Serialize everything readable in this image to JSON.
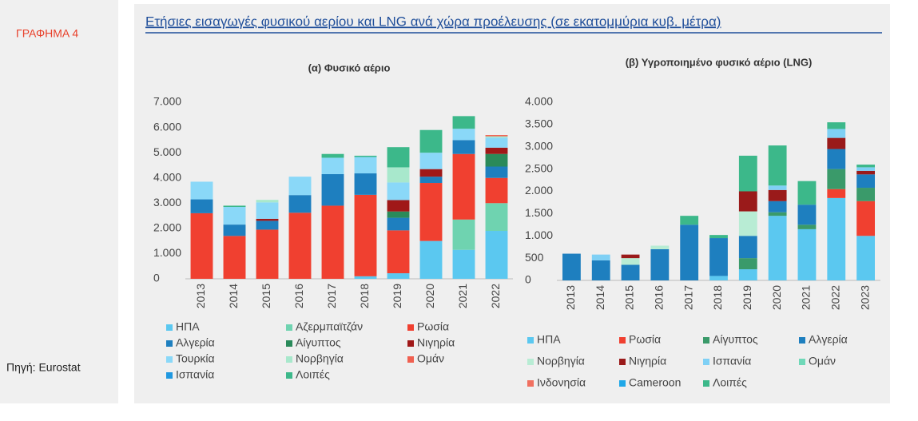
{
  "sidebar": {
    "label": "ΓΡΑΦΗΜΑ 4",
    "source": "Πηγή: Eurostat"
  },
  "title": "Ετήσιες εισαγωγές φυσικού αερίου και LNG ανά χώρα προέλευσης (σε εκατομμύρια κυβ. μέτρα)",
  "chart_data": [
    {
      "type": "stacked_bar",
      "title": "(α) Φυσικό αέριο",
      "categories": [
        "2013",
        "2014",
        "2015",
        "2016",
        "2017",
        "2018",
        "2019",
        "2020",
        "2021",
        "2022"
      ],
      "ylim": [
        0,
        7000
      ],
      "yticks": [
        0,
        {
          "value": 1000,
          "label": "1.000"
        },
        {
          "value": 2000,
          "label": "2.000"
        },
        {
          "value": 3000,
          "label": "3.000"
        },
        {
          "value": 4000,
          "label": "4.000"
        },
        {
          "value": 5000,
          "label": "5.000"
        },
        {
          "value": 6000,
          "label": "6.000"
        },
        {
          "value": 7000,
          "label": "7.000"
        }
      ],
      "grid": false,
      "series": [
        {
          "name": "ΗΠΑ",
          "color": "#5bc8f0",
          "values": [
            0,
            0,
            0,
            0,
            0,
            100,
            220,
            1500,
            1150,
            1900
          ]
        },
        {
          "name": "Αζερμπαϊτζάν",
          "color": "#6fd3b0",
          "values": [
            0,
            0,
            0,
            0,
            0,
            0,
            0,
            0,
            1200,
            1100
          ]
        },
        {
          "name": "Ρωσία",
          "color": "#f04030",
          "values": [
            2600,
            1700,
            1950,
            2620,
            2900,
            3230,
            1700,
            2300,
            2600,
            1000
          ]
        },
        {
          "name": "Αλγερία",
          "color": "#1e7fbf",
          "values": [
            550,
            450,
            350,
            700,
            1250,
            850,
            500,
            250,
            550,
            450
          ]
        },
        {
          "name": "Αίγυπτος",
          "color": "#2a8a5a",
          "values": [
            0,
            0,
            0,
            0,
            0,
            0,
            250,
            0,
            0,
            500
          ]
        },
        {
          "name": "Νιγηρία",
          "color": "#a01818",
          "values": [
            0,
            0,
            80,
            0,
            0,
            0,
            450,
            300,
            0,
            250
          ]
        },
        {
          "name": "Τουρκία",
          "color": "#8ad8f8",
          "values": [
            700,
            700,
            650,
            730,
            650,
            650,
            700,
            650,
            450,
            400
          ]
        },
        {
          "name": "Νορβηγία",
          "color": "#a8e8cc",
          "values": [
            0,
            0,
            100,
            0,
            0,
            0,
            600,
            0,
            0,
            50
          ]
        },
        {
          "name": "Ομάν",
          "color": "#f06050",
          "values": [
            0,
            0,
            0,
            0,
            0,
            0,
            0,
            0,
            0,
            50
          ]
        },
        {
          "name": "Ισπανία",
          "color": "#2098e0",
          "values": [
            0,
            0,
            0,
            0,
            0,
            0,
            0,
            0,
            0,
            0
          ]
        },
        {
          "name": "Λοιπές",
          "color": "#3cb88a",
          "values": [
            0,
            50,
            0,
            0,
            150,
            50,
            800,
            900,
            500,
            0
          ]
        }
      ]
    },
    {
      "type": "stacked_bar",
      "title": "(β) Υγροποιημένο φυσικό αέριο (LNG)",
      "categories": [
        "2013",
        "2014",
        "2015",
        "2016",
        "2017",
        "2018",
        "2019",
        "2020",
        "2021",
        "2022",
        "2023"
      ],
      "ylim": [
        0,
        4000
      ],
      "yticks": [
        0,
        500,
        {
          "value": 1000,
          "label": "1.000"
        },
        {
          "value": 1500,
          "label": "1.500"
        },
        {
          "value": 2000,
          "label": "2.000"
        },
        {
          "value": 2500,
          "label": "2.500"
        },
        {
          "value": 3000,
          "label": "3.000"
        },
        {
          "value": 3500,
          "label": "3.500"
        },
        {
          "value": 4000,
          "label": "4.000"
        }
      ],
      "grid": false,
      "series": [
        {
          "name": "ΗΠΑ",
          "color": "#5bc8f0",
          "values": [
            0,
            0,
            0,
            0,
            0,
            100,
            250,
            1450,
            1150,
            1850,
            1000
          ]
        },
        {
          "name": "Ρωσία",
          "color": "#f04030",
          "values": [
            0,
            0,
            0,
            0,
            0,
            0,
            0,
            0,
            0,
            200,
            780
          ]
        },
        {
          "name": "Αίγυπτος",
          "color": "#3a9a6a",
          "values": [
            0,
            0,
            0,
            0,
            0,
            0,
            250,
            80,
            100,
            450,
            300
          ]
        },
        {
          "name": "Αλγερία",
          "color": "#1e7fbf",
          "values": [
            600,
            450,
            350,
            700,
            1250,
            850,
            500,
            250,
            450,
            450,
            300
          ]
        },
        {
          "name": "Νορβηγία",
          "color": "#b8ecd4",
          "values": [
            0,
            0,
            150,
            80,
            0,
            0,
            550,
            0,
            0,
            0,
            0
          ]
        },
        {
          "name": "Νιγηρία",
          "color": "#9a1a1a",
          "values": [
            0,
            0,
            80,
            0,
            0,
            0,
            450,
            250,
            0,
            250,
            80
          ]
        },
        {
          "name": "Ισπανία",
          "color": "#7fd0f5",
          "values": [
            0,
            130,
            0,
            0,
            0,
            0,
            0,
            100,
            0,
            200,
            80
          ]
        },
        {
          "name": "Ομάν",
          "color": "#6fd8b8",
          "values": [
            0,
            0,
            0,
            0,
            0,
            0,
            0,
            0,
            0,
            0,
            0
          ]
        },
        {
          "name": "Ινδονησία",
          "color": "#f07060",
          "values": [
            0,
            0,
            0,
            0,
            0,
            0,
            0,
            0,
            0,
            0,
            0
          ]
        },
        {
          "name": "Cameroon",
          "color": "#20a8e8",
          "values": [
            0,
            0,
            0,
            0,
            0,
            0,
            0,
            0,
            0,
            0,
            0
          ]
        },
        {
          "name": "Λοιπές",
          "color": "#3cb88a",
          "values": [
            0,
            0,
            0,
            0,
            200,
            70,
            800,
            900,
            530,
            150,
            60
          ]
        }
      ]
    }
  ]
}
